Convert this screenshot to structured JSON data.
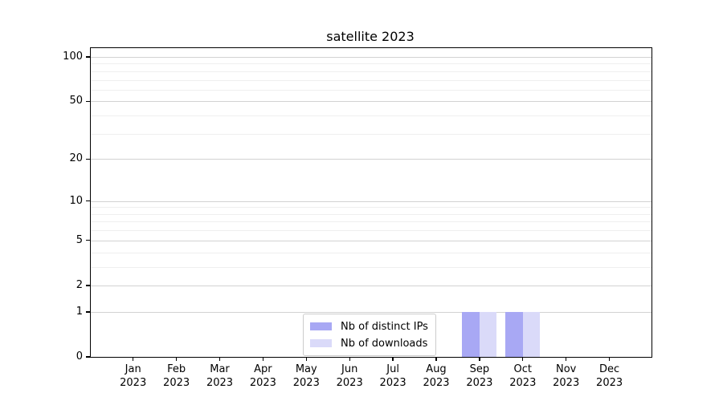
{
  "chart_data": {
    "type": "bar",
    "title": "satellite 2023",
    "categories": [
      {
        "line1": "Jan",
        "line2": "2023"
      },
      {
        "line1": "Feb",
        "line2": "2023"
      },
      {
        "line1": "Mar",
        "line2": "2023"
      },
      {
        "line1": "Apr",
        "line2": "2023"
      },
      {
        "line1": "May",
        "line2": "2023"
      },
      {
        "line1": "Jun",
        "line2": "2023"
      },
      {
        "line1": "Jul",
        "line2": "2023"
      },
      {
        "line1": "Aug",
        "line2": "2023"
      },
      {
        "line1": "Sep",
        "line2": "2023"
      },
      {
        "line1": "Oct",
        "line2": "2023"
      },
      {
        "line1": "Nov",
        "line2": "2023"
      },
      {
        "line1": "Dec",
        "line2": "2023"
      }
    ],
    "series": [
      {
        "name": "Nb of distinct IPs",
        "color": "#a8a8f4",
        "values": [
          0,
          0,
          0,
          0,
          0,
          0,
          0,
          0,
          1,
          1,
          0,
          0
        ]
      },
      {
        "name": "Nb of downloads",
        "color": "#dadaf9",
        "values": [
          0,
          0,
          0,
          0,
          0,
          0,
          0,
          0,
          1,
          1,
          0,
          0
        ]
      }
    ],
    "yscale": "log1p",
    "ylim": [
      0,
      114.7
    ],
    "yticks": [
      0,
      1,
      2,
      5,
      10,
      20,
      50,
      100
    ],
    "yticks_minor": [
      3,
      4,
      6,
      7,
      8,
      9,
      30,
      40,
      60,
      70,
      80,
      90
    ],
    "xlabel": "",
    "ylabel": "",
    "grid": "horizontal",
    "legend_position": "inside-bottom-center"
  }
}
